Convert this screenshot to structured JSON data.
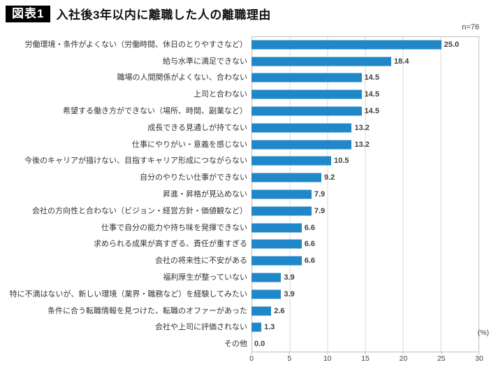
{
  "header": {
    "badge": "図表1",
    "title": "入社後3年以内に離職した人の離職理由",
    "sample_size": "n=76"
  },
  "chart_data": {
    "type": "bar",
    "orientation": "horizontal",
    "title": "入社後3年以内に離職した人の離職理由",
    "sample_size": "n=76",
    "categories": [
      "労働環境・条件がよくない（労働時間、休日のとりやすさなど）",
      "給与水準に満足できない",
      "職場の人間関係がよくない、合わない",
      "上司と合わない",
      "希望する働き方ができない（場所、時間、副業など）",
      "成長できる見通しが持てない",
      "仕事にやりがい・意義を感じない",
      "今後のキャリアが描けない、目指すキャリア形成につながらない",
      "自分のやりたい仕事ができない",
      "昇進・昇格が見込めない",
      "会社の方向性と合わない（ビジョン・経営方針・価値観など）",
      "仕事で自分の能力や持ち味を発揮できない",
      "求められる成果が高すぎる、責任が重すぎる",
      "会社の将来性に不安がある",
      "福利厚生が整っていない",
      "特に不満はないが、新しい環境（業界・職務など）を経験してみたい",
      "条件に合う転職情報を見つけた、転職のオファーがあった",
      "会社や上司に評価されない",
      "その他"
    ],
    "values": [
      25.0,
      18.4,
      14.5,
      14.5,
      14.5,
      13.2,
      13.2,
      10.5,
      9.2,
      7.9,
      7.9,
      6.6,
      6.6,
      6.6,
      3.9,
      3.9,
      2.6,
      1.3,
      0.0
    ],
    "xlim": [
      0,
      30
    ],
    "xticks": [
      0,
      5,
      10,
      15,
      20,
      25,
      30
    ],
    "xlabel": "(%)",
    "grid": true,
    "legend": false,
    "bar_color": "#2087C8",
    "value_label_color": "#404040"
  }
}
